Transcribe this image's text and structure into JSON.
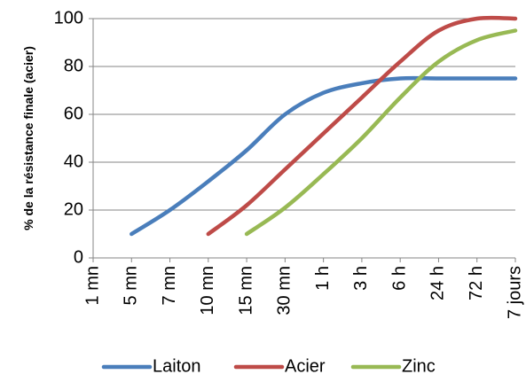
{
  "chart_data": {
    "type": "line",
    "title": "",
    "xlabel": "",
    "ylabel": "% de la résistance finale (acier)",
    "categories": [
      "1 mn",
      "5 mn",
      "7 mn",
      "10 mn",
      "15 mn",
      "30 mn",
      "1 h",
      "3 h",
      "6 h",
      "24 h",
      "72 h",
      "7 jours"
    ],
    "ylim": [
      0,
      100
    ],
    "yticks": [
      0,
      20,
      40,
      60,
      80,
      100
    ],
    "grid": true,
    "legend_position": "bottom",
    "series": [
      {
        "name": "Laiton",
        "color": "#4a7ebb",
        "values": [
          null,
          10,
          20,
          32,
          45,
          60,
          69,
          73,
          75,
          75,
          75,
          75
        ]
      },
      {
        "name": "Acier",
        "color": "#be4b48",
        "values": [
          null,
          null,
          null,
          10,
          22,
          37,
          52,
          67,
          82,
          95,
          100,
          100
        ]
      },
      {
        "name": "Zinc",
        "color": "#98b954",
        "values": [
          null,
          null,
          null,
          null,
          10,
          21,
          35,
          50,
          67,
          82,
          91,
          95
        ]
      }
    ]
  }
}
